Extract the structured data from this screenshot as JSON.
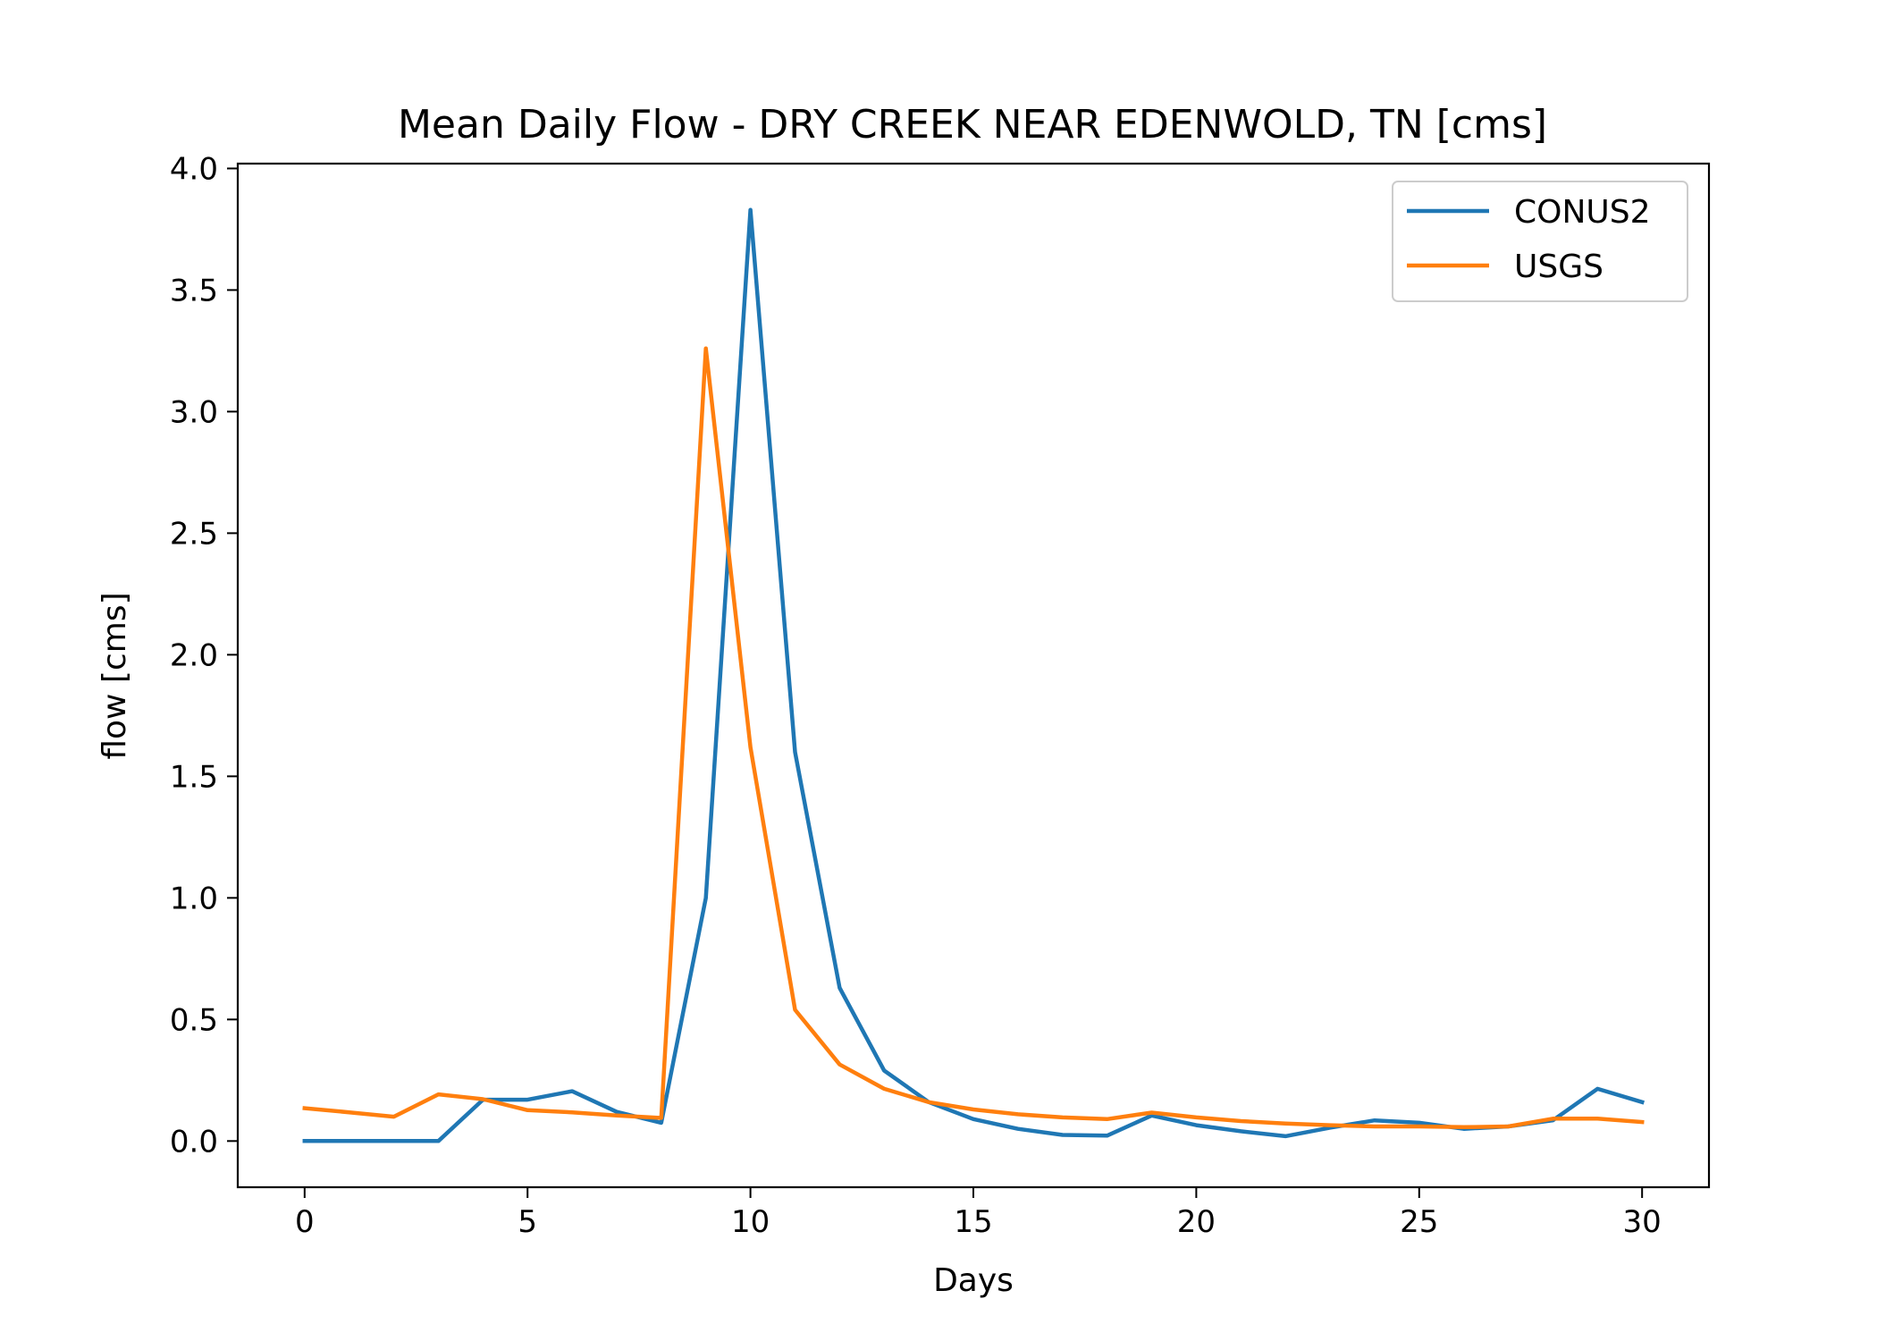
{
  "chart_data": {
    "type": "line",
    "title": "Mean Daily Flow - DRY CREEK NEAR EDENWOLD, TN [cms]",
    "xlabel": "Days",
    "ylabel": "flow [cms]",
    "xlim": [
      -1.5,
      31.5
    ],
    "ylim": [
      -0.19,
      4.02
    ],
    "xticks": [
      0,
      5,
      10,
      15,
      20,
      25,
      30
    ],
    "xtick_labels": [
      "0",
      "5",
      "10",
      "15",
      "20",
      "25",
      "30"
    ],
    "yticks": [
      0.0,
      0.5,
      1.0,
      1.5,
      2.0,
      2.5,
      3.0,
      3.5,
      4.0
    ],
    "ytick_labels": [
      "0.0",
      "0.5",
      "1.0",
      "1.5",
      "2.0",
      "2.5",
      "3.0",
      "3.5",
      "4.0"
    ],
    "grid": false,
    "legend_position": "top-right",
    "x": [
      0,
      1,
      2,
      3,
      4,
      5,
      6,
      7,
      8,
      9,
      10,
      11,
      12,
      13,
      14,
      15,
      16,
      17,
      18,
      19,
      20,
      21,
      22,
      23,
      24,
      25,
      26,
      27,
      28,
      29,
      30
    ],
    "series": [
      {
        "name": "CONUS2",
        "color": "#1f77b4",
        "values": [
          0.0,
          0.0,
          0.0,
          0.0,
          0.17,
          0.17,
          0.205,
          0.12,
          0.075,
          1.0,
          3.83,
          1.6,
          0.63,
          0.29,
          0.16,
          0.09,
          0.05,
          0.025,
          0.022,
          0.105,
          0.065,
          0.04,
          0.02,
          0.055,
          0.085,
          0.075,
          0.05,
          0.06,
          0.085,
          0.215,
          0.16
        ]
      },
      {
        "name": "USGS",
        "color": "#ff7f0e",
        "values": [
          0.135,
          0.118,
          0.1,
          0.192,
          0.172,
          0.127,
          0.118,
          0.105,
          0.095,
          3.26,
          1.62,
          0.54,
          0.315,
          0.215,
          0.16,
          0.13,
          0.11,
          0.097,
          0.09,
          0.117,
          0.097,
          0.082,
          0.072,
          0.065,
          0.06,
          0.06,
          0.057,
          0.06,
          0.092,
          0.092,
          0.078
        ]
      }
    ]
  }
}
